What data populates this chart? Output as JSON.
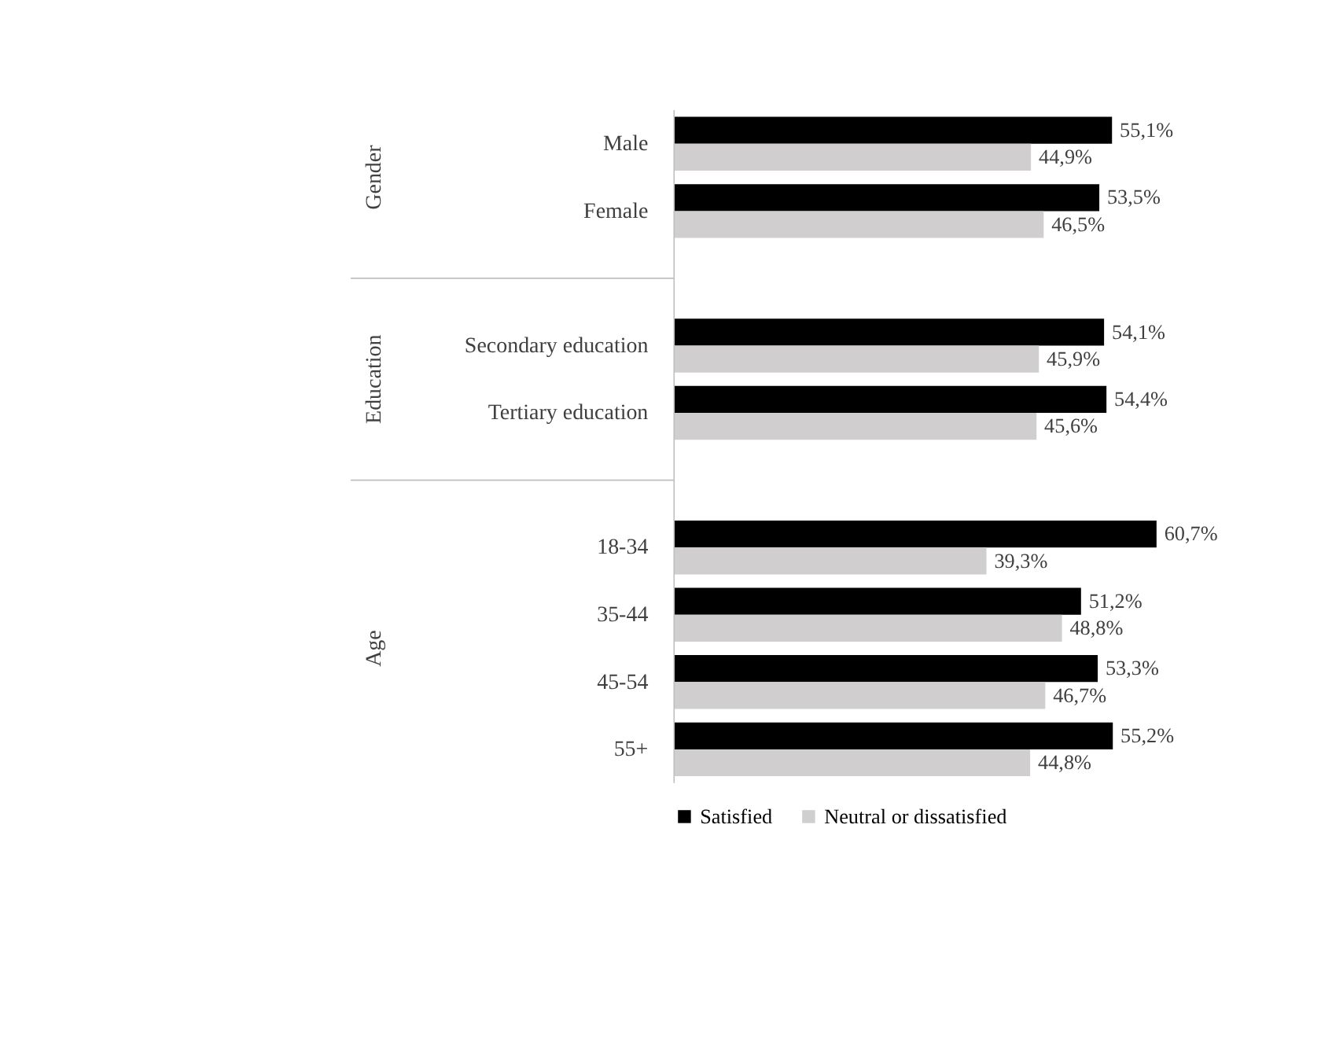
{
  "chart_data": {
    "type": "bar",
    "orientation": "horizontal",
    "categories": [
      "Male",
      "Female",
      null,
      "Secondary education",
      "Tertiary education",
      null,
      "18-34",
      "35-44",
      "45-54",
      "55+"
    ],
    "series": [
      {
        "name": "Satisfied",
        "color": "#000000",
        "values": [
          55.1,
          53.5,
          null,
          54.1,
          54.4,
          null,
          60.7,
          51.2,
          53.3,
          55.2
        ],
        "value_labels": [
          "55,1%",
          "53,5%",
          null,
          "54,1%",
          "54,4%",
          null,
          "60,7%",
          "51,2%",
          "53,3%",
          "55,2%"
        ]
      },
      {
        "name": "Neutral or dissatisfied",
        "color": "#d0cece",
        "values": [
          44.9,
          46.5,
          null,
          45.9,
          45.6,
          null,
          39.3,
          48.8,
          46.7,
          44.8
        ],
        "value_labels": [
          "44,9%",
          "46,5%",
          null,
          "45,9%",
          "45,6%",
          null,
          "39,3%",
          "48,8%",
          "46,7%",
          "44,8%"
        ]
      }
    ],
    "annotations": [
      "Gender",
      "Education",
      "Age"
    ],
    "legend": "bottom"
  }
}
